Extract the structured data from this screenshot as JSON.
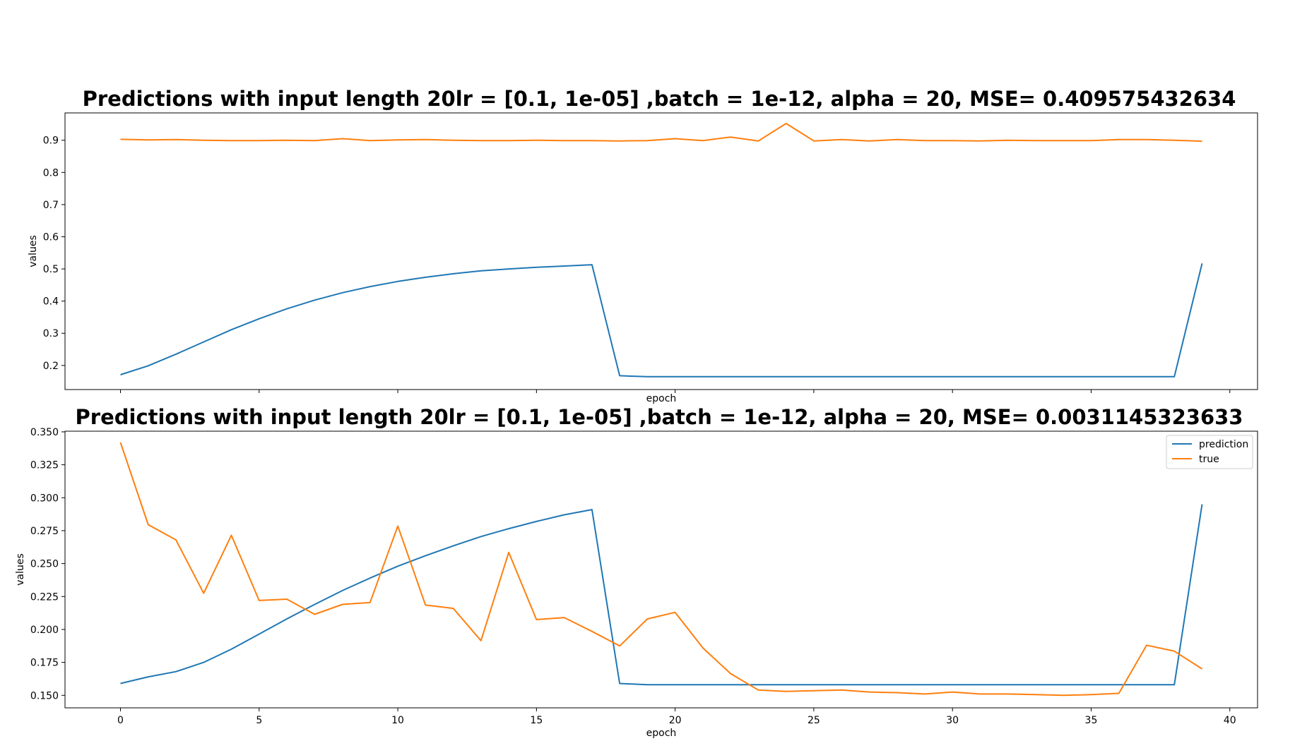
{
  "chart_data": [
    {
      "type": "line",
      "title": "Predictions with input length 20lr = [0.1, 1e-05] ,batch = 1e-12, alpha = 20, MSE= 0.409575432634",
      "xlabel": "epoch",
      "ylabel": "values",
      "xlim": [
        -2,
        41
      ],
      "ylim": [
        0.125,
        0.985
      ],
      "xticks": [
        0,
        5,
        10,
        15,
        20,
        25,
        30,
        35,
        40
      ],
      "xtick_labels_visible": false,
      "yticks": [
        0.2,
        0.3,
        0.4,
        0.5,
        0.6,
        0.7,
        0.8,
        0.9
      ],
      "ytick_labels": [
        "0.2",
        "0.3",
        "0.4",
        "0.5",
        "0.6",
        "0.7",
        "0.8",
        "0.9"
      ],
      "legend": false,
      "x": [
        0,
        1,
        2,
        3,
        4,
        5,
        6,
        7,
        8,
        9,
        10,
        11,
        12,
        13,
        14,
        15,
        16,
        17,
        18,
        19,
        20,
        21,
        22,
        23,
        24,
        25,
        26,
        27,
        28,
        29,
        30,
        31,
        32,
        33,
        34,
        35,
        36,
        37,
        38,
        39
      ],
      "series": [
        {
          "name": "prediction",
          "color": "#1f77b4",
          "values": [
            0.171,
            0.199,
            0.235,
            0.273,
            0.311,
            0.345,
            0.376,
            0.403,
            0.426,
            0.445,
            0.461,
            0.474,
            0.485,
            0.494,
            0.5,
            0.505,
            0.509,
            0.513,
            0.168,
            0.165,
            0.165,
            0.165,
            0.165,
            0.165,
            0.165,
            0.165,
            0.165,
            0.165,
            0.165,
            0.165,
            0.165,
            0.165,
            0.165,
            0.165,
            0.165,
            0.165,
            0.165,
            0.165,
            0.165,
            0.517
          ]
        },
        {
          "name": "true",
          "color": "#ff7f0e",
          "values": [
            0.903,
            0.901,
            0.902,
            0.9,
            0.899,
            0.899,
            0.9,
            0.899,
            0.905,
            0.899,
            0.901,
            0.902,
            0.9,
            0.899,
            0.899,
            0.9,
            0.899,
            0.899,
            0.898,
            0.899,
            0.905,
            0.899,
            0.91,
            0.898,
            0.952,
            0.898,
            0.902,
            0.898,
            0.902,
            0.899,
            0.899,
            0.898,
            0.9,
            0.899,
            0.899,
            0.899,
            0.902,
            0.902,
            0.9,
            0.897
          ]
        }
      ]
    },
    {
      "type": "line",
      "title": "Predictions with input length 20lr = [0.1, 1e-05] ,batch = 1e-12, alpha = 20, MSE= 0.0031145323633",
      "xlabel": "epoch",
      "ylabel": "values",
      "xlim": [
        -2,
        41
      ],
      "ylim": [
        0.1405,
        0.3505
      ],
      "xticks": [
        0,
        5,
        10,
        15,
        20,
        25,
        30,
        35,
        40
      ],
      "xtick_labels": [
        "0",
        "5",
        "10",
        "15",
        "20",
        "25",
        "30",
        "35",
        "40"
      ],
      "yticks": [
        0.15,
        0.175,
        0.2,
        0.225,
        0.25,
        0.275,
        0.3,
        0.325,
        0.35
      ],
      "ytick_labels": [
        "0.150",
        "0.175",
        "0.200",
        "0.225",
        "0.250",
        "0.275",
        "0.300",
        "0.325",
        "0.350"
      ],
      "legend": true,
      "legend_position": "top-right",
      "x": [
        0,
        1,
        2,
        3,
        4,
        5,
        6,
        7,
        8,
        9,
        10,
        11,
        12,
        13,
        14,
        15,
        16,
        17,
        18,
        19,
        20,
        21,
        22,
        23,
        24,
        25,
        26,
        27,
        28,
        29,
        30,
        31,
        32,
        33,
        34,
        35,
        36,
        37,
        38,
        39
      ],
      "series": [
        {
          "name": "prediction",
          "color": "#1f77b4",
          "values": [
            0.159,
            0.164,
            0.168,
            0.175,
            0.185,
            0.1965,
            0.208,
            0.219,
            0.2295,
            0.239,
            0.248,
            0.256,
            0.2635,
            0.2705,
            0.2765,
            0.282,
            0.287,
            0.291,
            0.159,
            0.158,
            0.158,
            0.158,
            0.158,
            0.158,
            0.158,
            0.158,
            0.158,
            0.158,
            0.158,
            0.158,
            0.158,
            0.158,
            0.158,
            0.158,
            0.158,
            0.158,
            0.158,
            0.158,
            0.158,
            0.295
          ]
        },
        {
          "name": "true",
          "color": "#ff7f0e",
          "values": [
            0.342,
            0.2795,
            0.268,
            0.2275,
            0.2715,
            0.222,
            0.223,
            0.2115,
            0.219,
            0.2205,
            0.2785,
            0.2185,
            0.216,
            0.1915,
            0.2585,
            0.2075,
            0.209,
            0.1985,
            0.1875,
            0.208,
            0.213,
            0.186,
            0.1665,
            0.154,
            0.153,
            0.1535,
            0.154,
            0.1525,
            0.152,
            0.151,
            0.1525,
            0.151,
            0.151,
            0.1505,
            0.15,
            0.1505,
            0.1515,
            0.188,
            0.1835,
            0.17
          ]
        }
      ]
    }
  ]
}
